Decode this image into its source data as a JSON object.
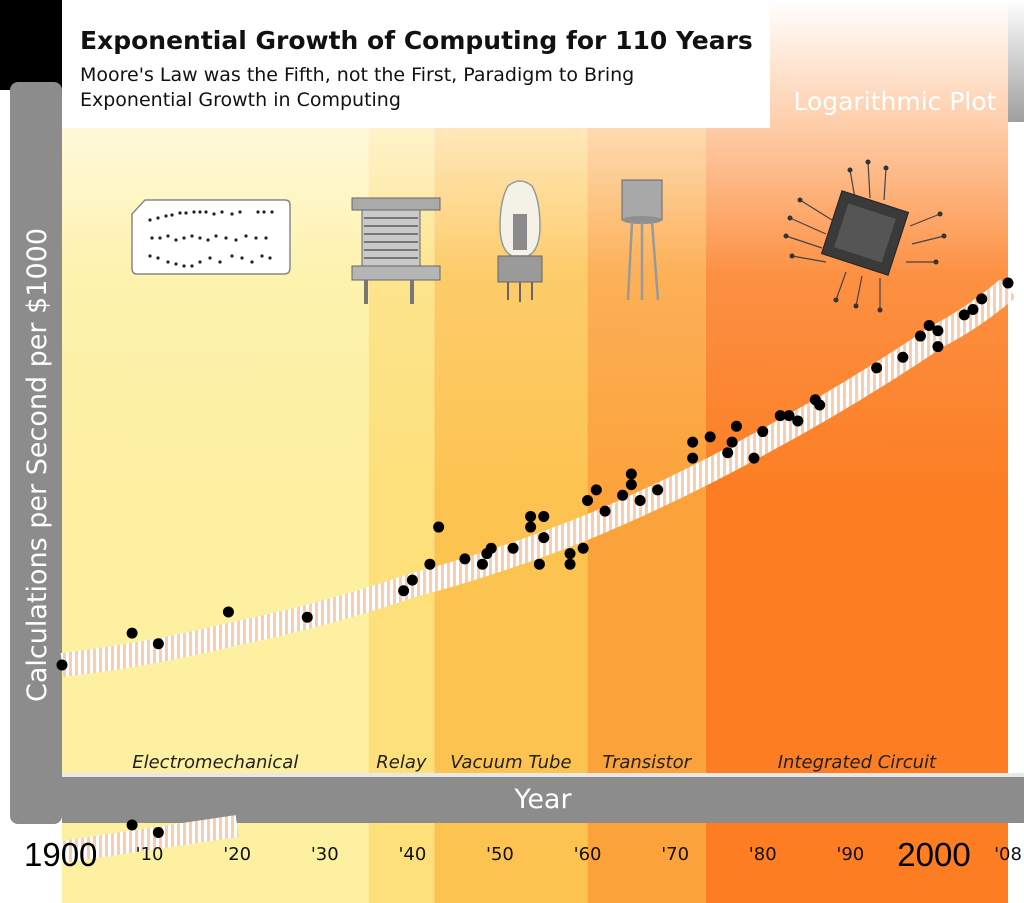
{
  "chart_data": {
    "type": "scatter",
    "title": "Exponential Growth of Computing for 110 Years",
    "subtitle_line1": "Moore's Law was the Fifth, not the First, Paradigm to Bring",
    "subtitle_line2": "Exponential Growth in Computing",
    "scale_badge": "Logarithmic Plot",
    "xlabel": "Year",
    "ylabel": "Calculations per Second per $1000",
    "xlim": [
      1900,
      2008
    ],
    "grid": false,
    "x_ticks": [
      "1900",
      "'10",
      "'20",
      "'30",
      "'40",
      "'50",
      "'60",
      "'70",
      "'80",
      "'90",
      "2000",
      "'08"
    ],
    "eras": [
      {
        "name": "Electromechanical",
        "start": 1900,
        "end": 1935,
        "color": "#fdf0a0"
      },
      {
        "name": "Relay",
        "start": 1935,
        "end": 1942.5,
        "color": "#fde07a"
      },
      {
        "name": "Vacuum Tube",
        "start": 1942.5,
        "end": 1960,
        "color": "#fdc350"
      },
      {
        "name": "Transistor",
        "start": 1960,
        "end": 1973.5,
        "color": "#fca23a"
      },
      {
        "name": "Integrated Circuit",
        "start": 1973.5,
        "end": 2008,
        "color": "#fc7d22"
      }
    ],
    "trend": {
      "x": [
        1900,
        1920,
        1940,
        1960,
        1980,
        2000,
        2008
      ],
      "y": [
        0,
        0.6,
        1.5,
        2.6,
        4.2,
        6.2,
        7.1
      ]
    },
    "points": {
      "x": [
        1900,
        1908,
        1911,
        1919,
        1928,
        1939,
        1940,
        1942,
        1943,
        1946,
        1948,
        1948.5,
        1949,
        1951.5,
        1953.5,
        1953.5,
        1954.5,
        1955,
        1955,
        1958,
        1958,
        1959.5,
        1960,
        1961,
        1962,
        1964,
        1965,
        1965,
        1966,
        1968,
        1972,
        1972,
        1974,
        1976,
        1976.5,
        1977,
        1979,
        1980,
        1982,
        1983,
        1984,
        1986,
        1986.5,
        1993,
        1996,
        1998,
        1999,
        2000,
        2000,
        2003,
        2004,
        2005,
        2008
      ],
      "y": [
        0,
        0.6,
        0.4,
        1.0,
        0.9,
        1.4,
        1.6,
        1.9,
        2.6,
        2.0,
        1.9,
        2.1,
        2.2,
        2.2,
        2.6,
        2.8,
        1.9,
        2.4,
        2.8,
        1.9,
        2.1,
        2.2,
        3.1,
        3.3,
        2.9,
        3.2,
        3.4,
        3.6,
        3.1,
        3.3,
        3.9,
        4.2,
        4.3,
        4.0,
        4.2,
        4.5,
        3.9,
        4.4,
        4.7,
        4.7,
        4.6,
        5.0,
        4.9,
        5.6,
        5.8,
        6.2,
        6.4,
        6.3,
        6.0,
        6.6,
        6.7,
        6.9,
        7.2
      ]
    },
    "below_axis_points": {
      "x": [
        1908,
        1911
      ],
      "y": [
        -0.5,
        -0.65
      ]
    }
  }
}
